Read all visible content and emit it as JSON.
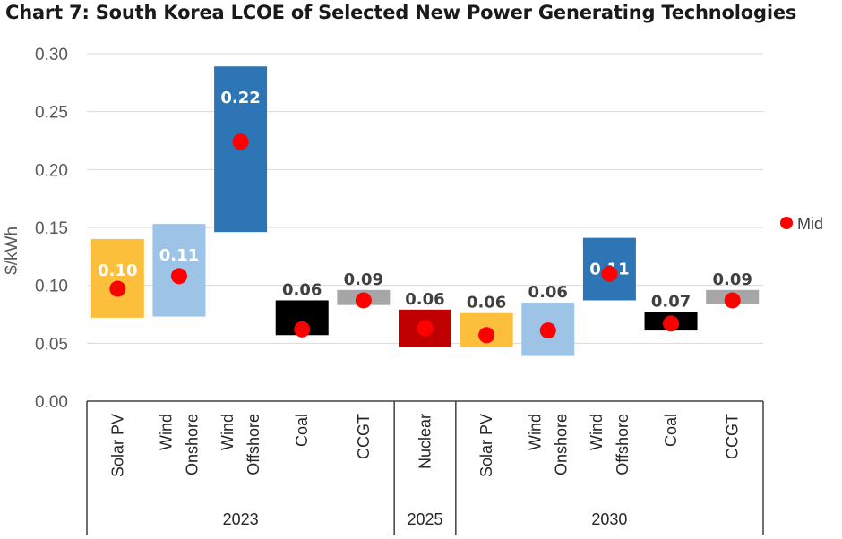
{
  "chart_data": {
    "type": "floating-bar",
    "title": "Chart 7: South Korea LCOE of Selected New Power Generating Technologies",
    "ylabel": "$/kWh",
    "ylim": [
      0,
      0.3
    ],
    "yticks": [
      "0.00",
      "0.05",
      "0.10",
      "0.15",
      "0.20",
      "0.25",
      "0.30"
    ],
    "grid": true,
    "legend": {
      "position": "right",
      "entries": [
        "Mid"
      ]
    },
    "groups": [
      {
        "label": "2023",
        "count": 5
      },
      {
        "label": "2025",
        "count": 1
      },
      {
        "label": "2030",
        "count": 5
      }
    ],
    "categories": [
      {
        "lines": [
          "Solar PV"
        ],
        "low": 0.072,
        "high": 0.14,
        "mid": 0.097,
        "label": "0.10",
        "color": "#FBBF3C",
        "label_pos": "inside"
      },
      {
        "lines": [
          "Wind",
          "Onshore"
        ],
        "low": 0.073,
        "high": 0.153,
        "mid": 0.108,
        "label": "0.11",
        "color": "#9DC3E6",
        "label_pos": "inside"
      },
      {
        "lines": [
          "Wind",
          "Offshore"
        ],
        "low": 0.146,
        "high": 0.289,
        "mid": 0.224,
        "label": "0.22",
        "color": "#2E75B6",
        "label_pos": "inside"
      },
      {
        "lines": [
          "Coal"
        ],
        "low": 0.057,
        "high": 0.087,
        "mid": 0.062,
        "label": "0.06",
        "color": "#000000",
        "label_pos": "above"
      },
      {
        "lines": [
          "CCGT"
        ],
        "low": 0.083,
        "high": 0.096,
        "mid": 0.087,
        "label": "0.09",
        "color": "#A6A6A6",
        "label_pos": "above"
      },
      {
        "lines": [
          "Nuclear"
        ],
        "low": 0.047,
        "high": 0.079,
        "mid": 0.063,
        "label": "0.06",
        "color": "#C00000",
        "label_pos": "above"
      },
      {
        "lines": [
          "Solar PV"
        ],
        "low": 0.047,
        "high": 0.076,
        "mid": 0.057,
        "label": "0.06",
        "color": "#FBBF3C",
        "label_pos": "above"
      },
      {
        "lines": [
          "Wind",
          "Onshore"
        ],
        "low": 0.039,
        "high": 0.085,
        "mid": 0.061,
        "label": "0.06",
        "color": "#9DC3E6",
        "label_pos": "above"
      },
      {
        "lines": [
          "Wind",
          "Offshore"
        ],
        "low": 0.087,
        "high": 0.141,
        "mid": 0.11,
        "label": "0.11",
        "color": "#2E75B6",
        "label_pos": "inside"
      },
      {
        "lines": [
          "Coal"
        ],
        "low": 0.061,
        "high": 0.077,
        "mid": 0.067,
        "label": "0.07",
        "color": "#000000",
        "label_pos": "above"
      },
      {
        "lines": [
          "CCGT"
        ],
        "low": 0.084,
        "high": 0.096,
        "mid": 0.087,
        "label": "0.09",
        "color": "#A6A6A6",
        "label_pos": "above"
      }
    ],
    "mid_marker_color": "#FF0000"
  }
}
